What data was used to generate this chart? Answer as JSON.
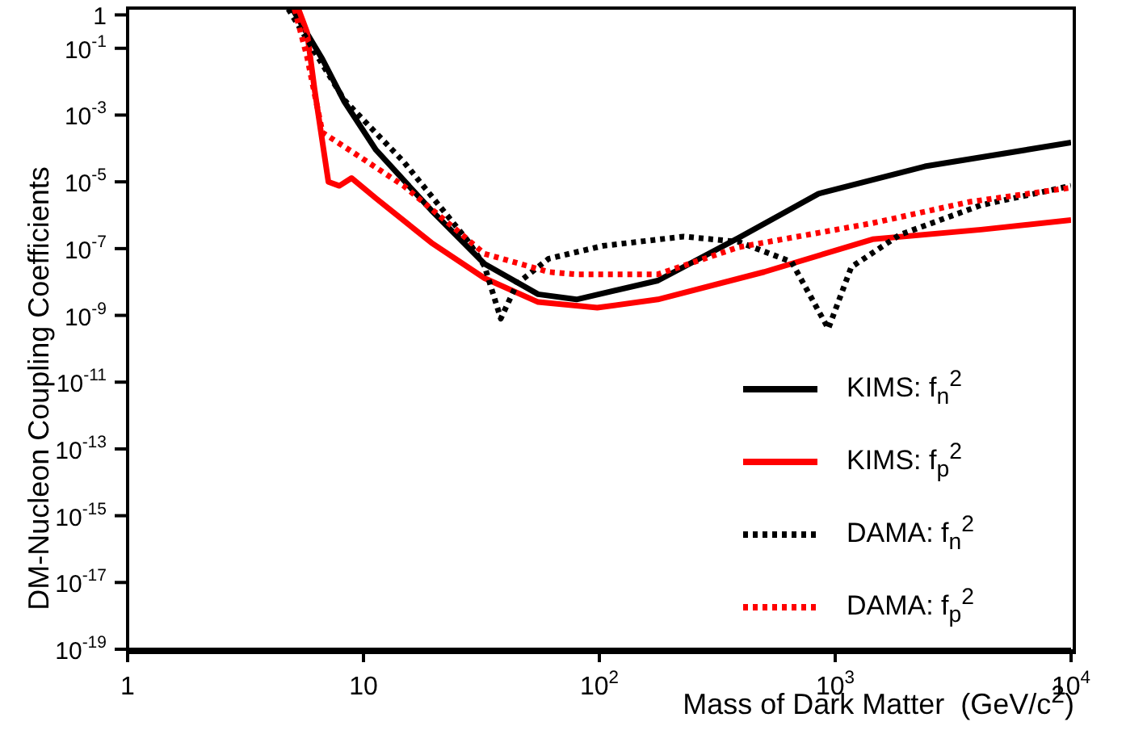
{
  "chart_data": {
    "type": "line",
    "xlabel": "Mass of Dark Matter  (GeV/c$^{2}$)",
    "ylabel": "DM-Nucleon Coupling Coefficients",
    "log": "xy",
    "xlim": [
      1,
      10000
    ],
    "ylim": [
      1e-19,
      1.6
    ],
    "xticks": [
      1,
      10,
      {
        "value": 100,
        "label": "10$^{2}$"
      },
      {
        "value": 1000,
        "label": "10$^{3}$"
      },
      {
        "value": 10000,
        "label": "10$^{4}$"
      }
    ],
    "yticks": [
      {
        "value": 1e-19,
        "label": "10$^{-19}$"
      },
      {
        "value": 1e-17,
        "label": "10$^{-17}$"
      },
      {
        "value": 1e-15,
        "label": "10$^{-15}$"
      },
      {
        "value": 1e-13,
        "label": "10$^{-13}$"
      },
      {
        "value": 1e-11,
        "label": "10$^{-11}$"
      },
      {
        "value": 1e-09,
        "label": "10$^{-9}$"
      },
      {
        "value": 1e-07,
        "label": "10$^{-7}$"
      },
      {
        "value": 1e-05,
        "label": "10$^{-5}$"
      },
      {
        "value": 0.001,
        "label": "10$^{-3}$"
      },
      {
        "value": 0.1,
        "label": "10$^{-1}$"
      },
      1
    ],
    "legend": "bottom right",
    "marker": "none",
    "series": [
      {
        "name": "KIMS: f$_{n}$$^{2}$",
        "color": "#000000",
        "line_style": "solid",
        "x": [
          5,
          6.7,
          8.3,
          11.3,
          19.4,
          32.6,
          55,
          80,
          177,
          389,
          850,
          2400,
          10000
        ],
        "values": [
          1.5,
          0.047,
          0.0025,
          9e-05,
          1.4e-06,
          3.5e-08,
          4.3e-09,
          3e-09,
          1.1e-08,
          2.1e-07,
          4.4e-06,
          2.9e-05,
          0.00015
        ]
      },
      {
        "name": "KIMS: f$_{p}$$^{2}$",
        "color": "#ff0000",
        "line_style": "solid",
        "x": [
          5.3,
          5.76,
          6.2,
          7.1,
          7.9,
          8.9,
          11.3,
          19.4,
          32.6,
          55,
          98,
          177,
          500,
          1440,
          4150,
          10000
        ],
        "values": [
          1.5,
          0.31,
          0.006,
          1e-05,
          7.6e-06,
          1.3e-05,
          3.2e-06,
          1.5e-07,
          1.3e-08,
          2.5e-09,
          1.7e-09,
          3e-09,
          2e-08,
          1.9e-07,
          3.7e-07,
          7.2e-07
        ]
      },
      {
        "name": "DAMA: f$_{n}$$^{2}$",
        "color": "#000000",
        "line_style": "dotted",
        "x": [
          4.8,
          8.3,
          14.8,
          27.9,
          32.6,
          38.2,
          44.8,
          61,
          103,
          228,
          389,
          653,
          935,
          1170,
          1880,
          4150,
          10000
        ],
        "values": [
          1.5,
          0.0028,
          4e-05,
          1.6e-07,
          3e-08,
          8e-10,
          9e-09,
          5e-08,
          1.2e-07,
          2.3e-07,
          1.6e-07,
          4e-08,
          4e-10,
          2.8e-08,
          2.6e-07,
          2e-06,
          7.6e-06
        ]
      },
      {
        "name": "DAMA: f$_{p}$$^{2}$",
        "color": "#ff0000",
        "line_style": "dotted",
        "x": [
          5.1,
          5.76,
          6.7,
          9.2,
          14.8,
          23.8,
          32.6,
          61,
          80,
          177,
          389,
          1440,
          3700,
          10000
        ],
        "values": [
          1.5,
          0.057,
          0.0003,
          7e-05,
          7.6e-06,
          4.6e-07,
          7e-08,
          2e-08,
          1.7e-08,
          1.7e-08,
          1.1e-07,
          5.8e-07,
          2.5e-06,
          6.7e-06
        ]
      }
    ]
  }
}
